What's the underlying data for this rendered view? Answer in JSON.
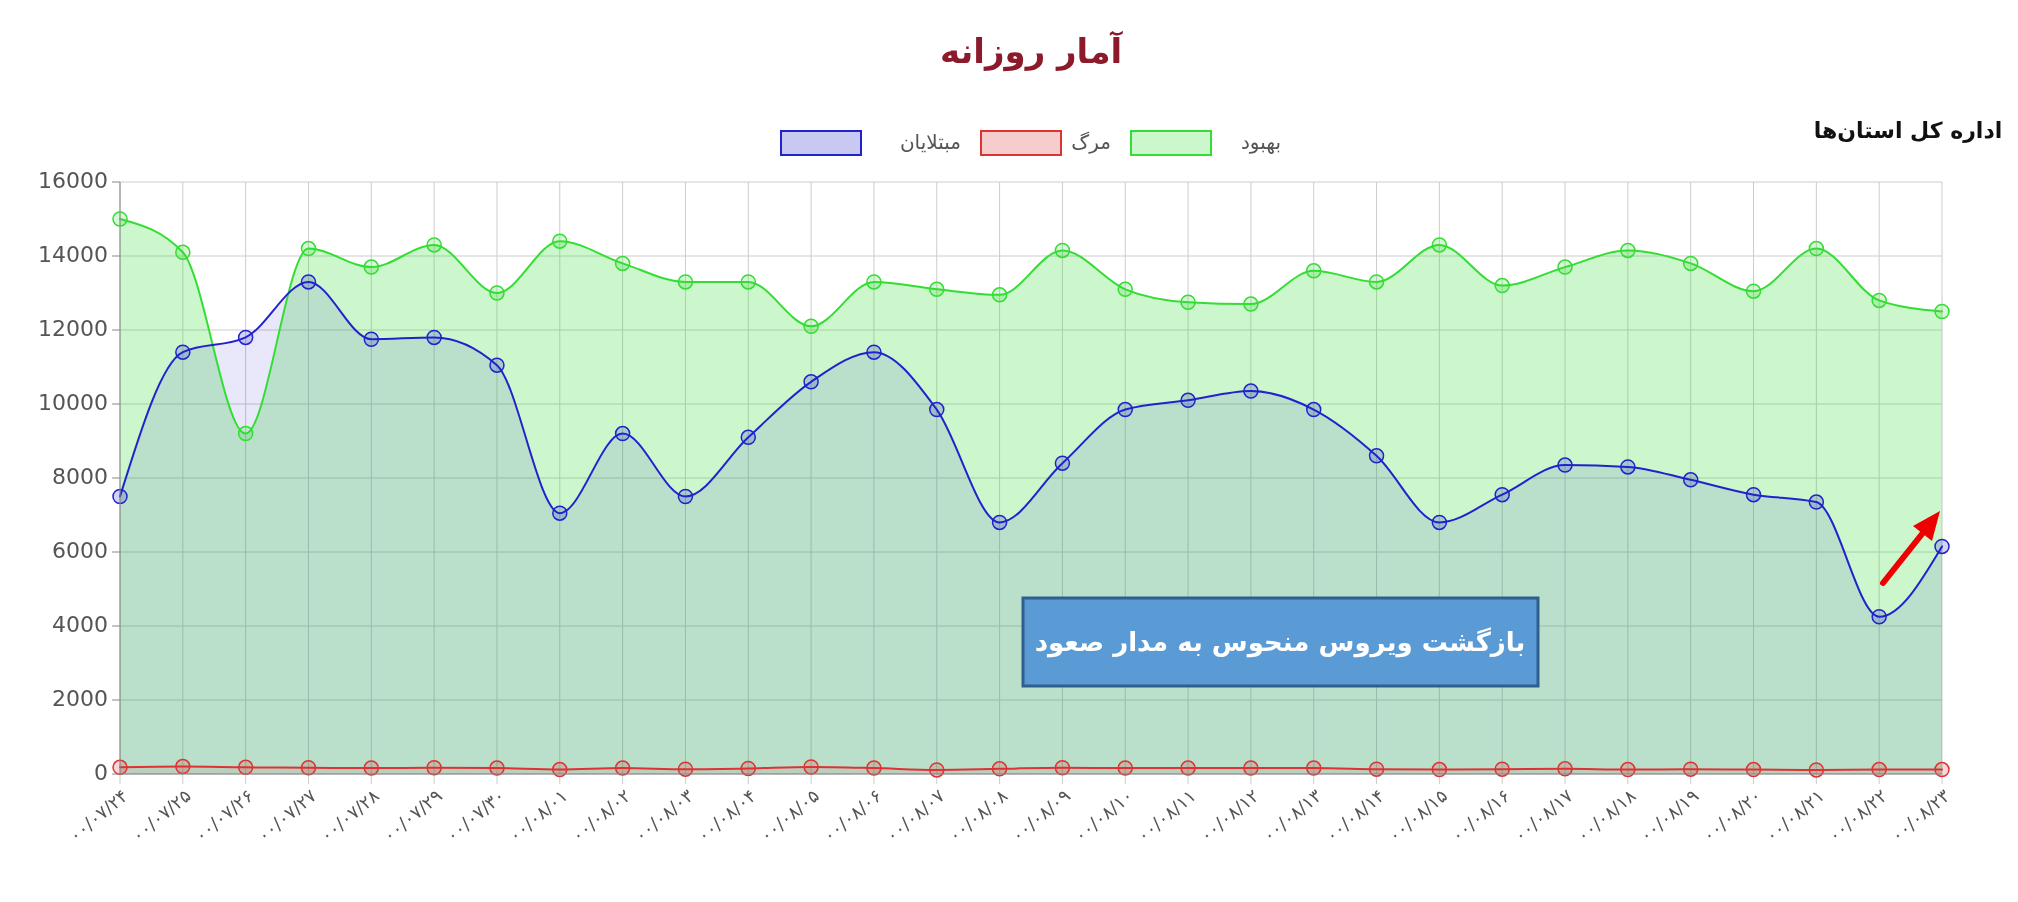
{
  "chart_data": {
    "type": "area",
    "title": "آمار روزانه",
    "categories": [
      "۰۰/۰۷/۲۴",
      "۰۰/۰۷/۲۵",
      "۰۰/۰۷/۲۶",
      "۰۰/۰۷/۲۷",
      "۰۰/۰۷/۲۸",
      "۰۰/۰۷/۲۹",
      "۰۰/۰۷/۳۰",
      "۰۰/۰۸/۰۱",
      "۰۰/۰۸/۰۲",
      "۰۰/۰۸/۰۳",
      "۰۰/۰۸/۰۴",
      "۰۰/۰۸/۰۵",
      "۰۰/۰۸/۰۶",
      "۰۰/۰۸/۰۷",
      "۰۰/۰۸/۰۸",
      "۰۰/۰۸/۰۹",
      "۰۰/۰۸/۱۰",
      "۰۰/۰۸/۱۱",
      "۰۰/۰۸/۱۲",
      "۰۰/۰۸/۱۳",
      "۰۰/۰۸/۱۴",
      "۰۰/۰۸/۱۵",
      "۰۰/۰۸/۱۶",
      "۰۰/۰۸/۱۷",
      "۰۰/۰۸/۱۸",
      "۰۰/۰۸/۱۹",
      "۰۰/۰۸/۲۰",
      "۰۰/۰۸/۲۱",
      "۰۰/۰۸/۲۲",
      "۰۰/۰۸/۲۳"
    ],
    "series": [
      {
        "name": "بهبود",
        "color": "#33dd33",
        "values": [
          15000,
          14100,
          9200,
          14200,
          13700,
          14300,
          13000,
          14400,
          13800,
          13300,
          13300,
          12100,
          13300,
          13100,
          12950,
          14150,
          13100,
          12750,
          12700,
          13600,
          13300,
          14300,
          13200,
          13700,
          14150,
          13800,
          13050,
          14200,
          12800,
          12500
        ]
      },
      {
        "name": "مرگ",
        "color": "#dd3333",
        "values": [
          180,
          200,
          180,
          170,
          160,
          170,
          160,
          120,
          160,
          130,
          150,
          190,
          160,
          110,
          140,
          170,
          160,
          160,
          160,
          160,
          130,
          120,
          130,
          140,
          120,
          130,
          120,
          110,
          120,
          120
        ]
      },
      {
        "name": "مبتلایان",
        "color": "#2222cc",
        "values": [
          7500,
          11400,
          11800,
          13300,
          11750,
          11800,
          11050,
          7050,
          9200,
          7500,
          9100,
          10600,
          11400,
          9850,
          6800,
          8400,
          9850,
          10100,
          10350,
          9850,
          8600,
          6800,
          7550,
          8350,
          8300,
          7950,
          7550,
          7350,
          4250,
          6150
        ]
      }
    ],
    "ylim": [
      0,
      16000
    ],
    "yticks": [
      0,
      2000,
      4000,
      6000,
      8000,
      10000,
      12000,
      14000,
      16000
    ],
    "grid": true,
    "legend": "top",
    "marker": "circle",
    "line_style": "solid",
    "annotations": [
      "بازگشت ویروس منحوس به مدار صعود",
      "اداره کل استان‌ها"
    ]
  }
}
